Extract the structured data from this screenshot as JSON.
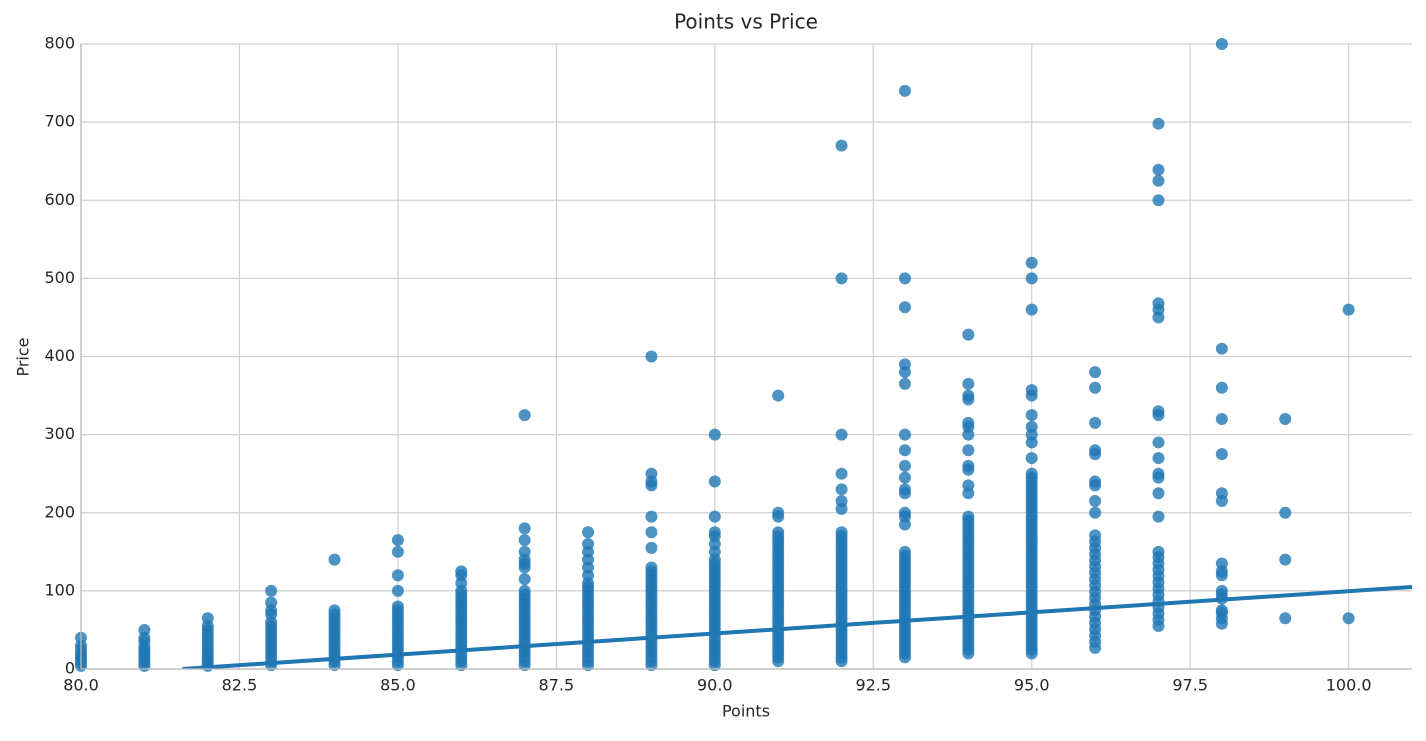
{
  "chart_data": {
    "type": "scatter",
    "title": "Points vs Price",
    "x_label": "Points",
    "y_label": "Price",
    "color": "#1f77b4",
    "grid": true,
    "xlim": [
      80,
      101
    ],
    "ylim": [
      0,
      800
    ],
    "xticks": [
      {
        "value": 80,
        "label": "80.0"
      },
      {
        "value": 82.5,
        "label": "82.5"
      },
      {
        "value": 85,
        "label": "85.0"
      },
      {
        "value": 87.5,
        "label": "87.5"
      },
      {
        "value": 90,
        "label": "90.0"
      },
      {
        "value": 92.5,
        "label": "92.5"
      },
      {
        "value": 95,
        "label": "95.0"
      },
      {
        "value": 97.5,
        "label": "97.5"
      },
      {
        "value": 100,
        "label": "100.0"
      }
    ],
    "yticks": [
      0,
      100,
      200,
      300,
      400,
      500,
      600,
      700,
      800
    ],
    "regression": {
      "x": [
        81.6,
        101
      ],
      "y": [
        0,
        105
      ]
    },
    "columns": [
      {
        "x": 80,
        "y": [
          4,
          8,
          12,
          16,
          20,
          25,
          30,
          40
        ]
      },
      {
        "x": 81,
        "y": [
          4,
          8,
          12,
          16,
          20,
          24,
          28,
          35,
          40,
          50
        ]
      },
      {
        "x": 82,
        "y": [
          4,
          8,
          12,
          16,
          20,
          25,
          30,
          35,
          40,
          45,
          50,
          55,
          65
        ]
      },
      {
        "x": 83,
        "y": [
          5,
          10,
          15,
          20,
          25,
          30,
          35,
          40,
          45,
          50,
          55,
          60,
          70,
          75,
          85,
          100
        ]
      },
      {
        "x": 84,
        "y": [
          5,
          10,
          15,
          20,
          25,
          30,
          35,
          40,
          45,
          50,
          55,
          60,
          65,
          70,
          75,
          140
        ]
      },
      {
        "x": 85,
        "y": [
          5,
          10,
          15,
          20,
          25,
          30,
          35,
          40,
          45,
          50,
          55,
          60,
          65,
          70,
          75,
          80,
          100,
          120,
          150,
          165
        ]
      },
      {
        "x": 86,
        "y": [
          5,
          10,
          15,
          20,
          25,
          30,
          35,
          40,
          45,
          50,
          55,
          60,
          65,
          70,
          75,
          80,
          85,
          90,
          95,
          100,
          110,
          120,
          125
        ]
      },
      {
        "x": 87,
        "y": [
          5,
          10,
          15,
          20,
          25,
          30,
          35,
          40,
          45,
          50,
          55,
          60,
          65,
          70,
          75,
          80,
          85,
          90,
          95,
          100,
          115,
          130,
          135,
          140,
          150,
          165,
          180,
          325
        ]
      },
      {
        "x": 88,
        "y": [
          5,
          10,
          15,
          20,
          25,
          30,
          35,
          40,
          45,
          50,
          55,
          60,
          65,
          70,
          75,
          80,
          85,
          90,
          95,
          100,
          105,
          110,
          120,
          130,
          140,
          150,
          160,
          175
        ]
      },
      {
        "x": 89,
        "y": [
          5,
          10,
          15,
          20,
          25,
          30,
          35,
          40,
          45,
          50,
          55,
          60,
          65,
          70,
          75,
          80,
          85,
          90,
          95,
          100,
          105,
          110,
          115,
          120,
          125,
          130,
          155,
          175,
          195,
          235,
          240,
          250,
          400
        ]
      },
      {
        "x": 90,
        "y": [
          5,
          10,
          15,
          20,
          25,
          30,
          35,
          40,
          45,
          50,
          55,
          60,
          65,
          70,
          75,
          80,
          85,
          90,
          95,
          100,
          105,
          110,
          115,
          120,
          125,
          130,
          135,
          140,
          150,
          160,
          170,
          175,
          195,
          240,
          300
        ]
      },
      {
        "x": 91,
        "y": [
          10,
          15,
          20,
          25,
          30,
          35,
          40,
          45,
          50,
          55,
          60,
          65,
          70,
          75,
          80,
          85,
          90,
          95,
          100,
          105,
          110,
          115,
          120,
          125,
          130,
          135,
          140,
          145,
          150,
          155,
          160,
          165,
          170,
          175,
          195,
          200,
          350
        ]
      },
      {
        "x": 92,
        "y": [
          10,
          15,
          20,
          25,
          30,
          35,
          40,
          45,
          50,
          55,
          60,
          65,
          70,
          75,
          80,
          85,
          90,
          95,
          100,
          105,
          110,
          115,
          120,
          125,
          130,
          135,
          140,
          145,
          150,
          155,
          160,
          165,
          170,
          175,
          205,
          215,
          230,
          250,
          300,
          500,
          670
        ]
      },
      {
        "x": 93,
        "y": [
          15,
          20,
          25,
          30,
          35,
          40,
          45,
          50,
          55,
          60,
          65,
          70,
          75,
          80,
          85,
          90,
          95,
          100,
          105,
          110,
          115,
          120,
          125,
          130,
          135,
          140,
          145,
          150,
          185,
          195,
          200,
          225,
          230,
          245,
          260,
          280,
          300,
          365,
          380,
          390,
          463,
          500,
          740
        ]
      },
      {
        "x": 94,
        "y": [
          20,
          25,
          30,
          35,
          40,
          45,
          50,
          55,
          60,
          65,
          70,
          75,
          80,
          85,
          90,
          95,
          100,
          105,
          110,
          115,
          120,
          125,
          130,
          135,
          140,
          145,
          150,
          155,
          160,
          165,
          170,
          175,
          180,
          185,
          190,
          195,
          225,
          235,
          255,
          260,
          280,
          300,
          310,
          315,
          345,
          350,
          365,
          428
        ]
      },
      {
        "x": 95,
        "y": [
          20,
          25,
          30,
          35,
          40,
          45,
          50,
          55,
          60,
          65,
          70,
          75,
          80,
          85,
          90,
          95,
          100,
          105,
          110,
          115,
          120,
          125,
          130,
          135,
          140,
          145,
          150,
          155,
          160,
          165,
          170,
          175,
          180,
          185,
          190,
          195,
          200,
          205,
          210,
          215,
          220,
          225,
          230,
          235,
          240,
          245,
          250,
          270,
          290,
          300,
          310,
          325,
          350,
          357,
          460,
          500,
          520
        ]
      },
      {
        "x": 96,
        "y": [
          27,
          35,
          43,
          51,
          59,
          67,
          75,
          83,
          91,
          99,
          107,
          115,
          123,
          131,
          139,
          147,
          155,
          163,
          171,
          200,
          215,
          235,
          240,
          275,
          280,
          315,
          360,
          380
        ]
      },
      {
        "x": 97,
        "y": [
          55,
          63,
          71,
          79,
          87,
          95,
          103,
          111,
          119,
          127,
          135,
          143,
          150,
          195,
          225,
          245,
          250,
          270,
          290,
          325,
          330,
          450,
          460,
          468,
          600,
          625,
          639,
          698
        ]
      },
      {
        "x": 98,
        "y": [
          58,
          65,
          72,
          75,
          90,
          95,
          100,
          120,
          125,
          135,
          215,
          225,
          275,
          320,
          360,
          410,
          800
        ]
      },
      {
        "x": 99,
        "y": [
          65,
          140,
          200,
          320
        ]
      },
      {
        "x": 100,
        "y": [
          65,
          460
        ]
      }
    ]
  }
}
